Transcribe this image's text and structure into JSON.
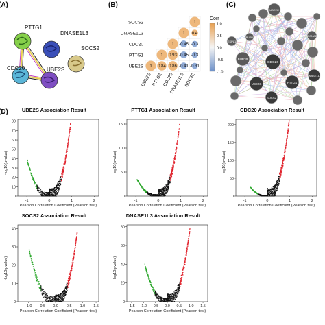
{
  "panels": {
    "a": "(A)",
    "b": "(B)",
    "c": "(C)",
    "d": "(D)"
  },
  "panel_a": {
    "nodes": [
      "PTTG1",
      "DNASE1L3",
      "CDC20",
      "UBE2S",
      "SOCS2"
    ],
    "colors": {
      "PTTG1": "#86d04a",
      "DNASE1L3": "#3a4fb8",
      "CDC20": "#5bb6d8",
      "UBE2S": "#7f4fc2",
      "SOCS2": "#d8c98a"
    }
  },
  "panel_b": {
    "row_labels": [
      "SOCS2",
      "DNASE1L3",
      "CDC20",
      "PTTG1",
      "UBE2S"
    ],
    "col_labels": [
      "UBE2S",
      "PTTG1",
      "CDC20",
      "DNASE1L3",
      "SOCS2"
    ],
    "cells": [
      [
        "",
        "",
        "",
        "",
        "1"
      ],
      [
        "",
        "",
        "",
        "1",
        "0.4"
      ],
      [
        "",
        "",
        "1",
        "-0.45",
        "-0.3"
      ],
      [
        "",
        "1",
        "0.93",
        "-0.45",
        "-0.3"
      ],
      [
        "1",
        "0.84",
        "0.86",
        "-0.41",
        "-0.31"
      ]
    ],
    "legend_title": "Corr",
    "legend_ticks": [
      "1.0",
      "0.5",
      "0.0",
      "-0.5",
      "-1.0"
    ]
  },
  "panel_c": {
    "nodes": [
      "UBE2C",
      "ESPL1",
      "BUB1",
      "CCNA2",
      "BUB1B",
      "CDC20",
      "PTTG1",
      "UBE2S",
      "SOCS2",
      "DNASE1L3"
    ]
  },
  "panel_d": {
    "chart_data": [
      {
        "type": "scatter",
        "title": "UBE2S Association Result",
        "xlabel": "Pearson Correlation Coefficient (Pearson test)",
        "ylabel": "-log10(pvalue)",
        "xlim": [
          -1.4,
          2.2
        ],
        "ylim": [
          0,
          82
        ],
        "xticks": [
          "-1",
          "0",
          "1",
          "2"
        ],
        "yticks": [
          "0",
          "10",
          "20",
          "30",
          "40",
          "50",
          "60",
          "70",
          "80"
        ],
        "x_peak_pos": 0.95,
        "x_peak_neg": -1.0,
        "y_max_pos": 78,
        "y_max_neg": 40
      },
      {
        "type": "scatter",
        "title": "PTTG1 Association Result",
        "xlabel": "Pearson Correlation Coefficient (Pearson test)",
        "ylabel": "-log10(pvalue)",
        "xlim": [
          -1.4,
          2.2
        ],
        "ylim": [
          0,
          160
        ],
        "xticks": [
          "-1",
          "0",
          "1",
          "2"
        ],
        "yticks": [
          "0",
          "50",
          "100",
          "150"
        ],
        "x_peak_pos": 0.95,
        "x_peak_neg": -0.95,
        "y_max_pos": 150,
        "y_max_neg": 35
      },
      {
        "type": "scatter",
        "title": "CDC20 Association Result",
        "xlabel": "Pearson Correlation Coefficient (Pearson test)",
        "ylabel": "-log10(pvalue)",
        "xlim": [
          -1.4,
          2.2
        ],
        "ylim": [
          0,
          215
        ],
        "xticks": [
          "-1",
          "0",
          "1",
          "2"
        ],
        "yticks": [
          "0",
          "50",
          "100",
          "150",
          "200"
        ],
        "x_peak_pos": 0.97,
        "x_peak_neg": -0.75,
        "y_max_pos": 210,
        "y_max_neg": 25
      },
      {
        "type": "scatter",
        "title": "SOCS2 Association Result",
        "xlabel": "Pearson Correlation Coefficient (Pearson test)",
        "ylabel": "-log10(pvalue)",
        "xlim": [
          -1.4,
          1.6
        ],
        "ylim": [
          0,
          42
        ],
        "xticks": [
          "-1.0",
          "-0.5",
          "0.0",
          "0.5",
          "1.0",
          "1.5"
        ],
        "yticks": [
          "0",
          "10",
          "20",
          "30",
          "40"
        ],
        "x_peak_pos": 0.8,
        "x_peak_neg": -1.0,
        "y_max_pos": 38,
        "y_max_neg": 30
      },
      {
        "type": "scatter",
        "title": "DNASE1L3 Association Result",
        "xlabel": "Pearson Correlation Coefficient (Pearson test)",
        "ylabel": "-log10(pvalue)",
        "xlim": [
          -1.7,
          1.7
        ],
        "ylim": [
          0,
          82
        ],
        "xticks": [
          "-1.5",
          "-1.0",
          "-0.5",
          "0.0",
          "0.5",
          "1.0",
          "1.5"
        ],
        "yticks": [
          "0",
          "20",
          "40",
          "60",
          "80"
        ],
        "x_peak_pos": 0.95,
        "x_peak_neg": -0.95,
        "y_max_pos": 78,
        "y_max_neg": 40
      }
    ]
  },
  "colors": {
    "positive": "#e0202a",
    "negative": "#2aa62a",
    "points": "#111111",
    "corr_high": "#e8a050",
    "corr_low": "#6b8fc8"
  }
}
